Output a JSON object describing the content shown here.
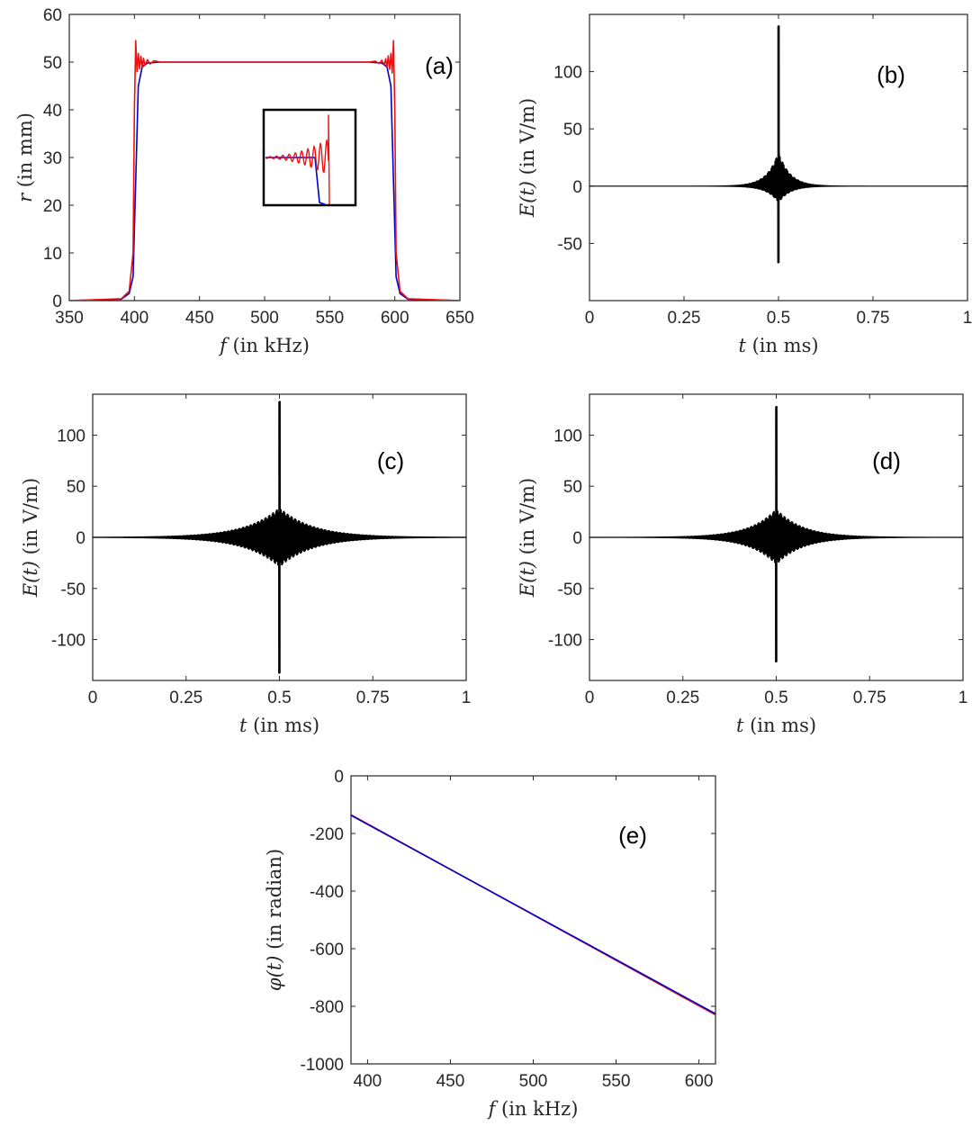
{
  "figure": {
    "panels": [
      {
        "id": "a",
        "label": "(a)"
      },
      {
        "id": "b",
        "label": "(b)"
      },
      {
        "id": "c",
        "label": "(c)"
      },
      {
        "id": "d",
        "label": "(d)"
      },
      {
        "id": "e",
        "label": "(e)"
      }
    ]
  },
  "chart_data": [
    {
      "id": "a",
      "type": "line",
      "title": "",
      "panel_label": "(a)",
      "xlabel_var": "f",
      "xlabel_unit": "(in kHz)",
      "ylabel_var": "r",
      "ylabel_unit": "(in mm)",
      "xlim": [
        350,
        650
      ],
      "ylim": [
        0,
        60
      ],
      "xticks": [
        350,
        400,
        450,
        500,
        550,
        600,
        650
      ],
      "yticks": [
        0,
        10,
        20,
        30,
        40,
        50,
        60
      ],
      "series": [
        {
          "color": "#0000cc",
          "x": [
            350,
            390,
            396,
            399,
            401,
            403,
            406,
            410,
            420,
            500,
            580,
            590,
            594,
            597,
            599,
            601,
            604,
            610,
            650
          ],
          "y": [
            0,
            0.3,
            1.5,
            5,
            25,
            45,
            49,
            49.8,
            50,
            50,
            50,
            49.8,
            49,
            45,
            25,
            5,
            1.5,
            0.3,
            0
          ]
        },
        {
          "color": "#ee1111",
          "x": [
            350,
            390,
            396,
            399,
            400,
            401,
            402,
            403,
            404,
            405,
            406,
            407,
            408,
            410,
            412,
            415,
            420,
            500,
            580,
            585,
            588,
            590,
            592,
            593,
            594,
            595,
            596,
            597,
            598,
            599,
            600,
            601,
            604,
            610,
            650
          ],
          "y": [
            0,
            0.4,
            2,
            10,
            40,
            54.5,
            48,
            51.8,
            48.6,
            51.2,
            49,
            50.8,
            49.3,
            50.5,
            49.6,
            50.3,
            50,
            50,
            50,
            50.2,
            49.7,
            50.4,
            49.4,
            50.7,
            48.9,
            51.3,
            48.5,
            51.8,
            47.7,
            54.5,
            40,
            10,
            2,
            0.4,
            0
          ]
        }
      ],
      "inset": {
        "note": "zoom of upper band edge"
      }
    },
    {
      "id": "b",
      "type": "line",
      "title": "",
      "panel_label": "(b)",
      "xlabel_var": "t",
      "xlabel_unit": "(in ms)",
      "ylabel_var": "E(t)",
      "ylabel_unit": "(in V/m)",
      "xlim": [
        0,
        1
      ],
      "ylim": [
        -100,
        150
      ],
      "xticks": [
        0,
        0.25,
        0.5,
        0.75,
        1
      ],
      "xticklabels": [
        "0",
        "0.25",
        "0.5",
        "0.75",
        "1"
      ],
      "yticks": [
        -50,
        0,
        50,
        100
      ],
      "pulse_center": 0.5,
      "peak_max": 140,
      "peak_min": -67,
      "envelope_width": 0.03
    },
    {
      "id": "c",
      "type": "line",
      "title": "",
      "panel_label": "(c)",
      "xlabel_var": "t",
      "xlabel_unit": "(in ms)",
      "ylabel_var": "E(t)",
      "ylabel_unit": "(in V/m)",
      "xlim": [
        0,
        1
      ],
      "ylim": [
        -140,
        140
      ],
      "xticks": [
        0,
        0.25,
        0.5,
        0.75,
        1
      ],
      "xticklabels": [
        "0",
        "0.25",
        "0.5",
        "0.75",
        "1"
      ],
      "yticks": [
        -100,
        -50,
        0,
        50,
        100
      ],
      "pulse_center": 0.5,
      "peak_max": 133,
      "peak_min": -133,
      "envelope_width": 0.09
    },
    {
      "id": "d",
      "type": "line",
      "title": "",
      "panel_label": "(d)",
      "xlabel_var": "t",
      "xlabel_unit": "(in ms)",
      "ylabel_var": "E(t)",
      "ylabel_unit": "(in V/m)",
      "xlim": [
        0,
        1
      ],
      "ylim": [
        -140,
        140
      ],
      "xticks": [
        0,
        0.25,
        0.5,
        0.75,
        1
      ],
      "xticklabels": [
        "0",
        "0.25",
        "0.5",
        "0.75",
        "1"
      ],
      "yticks": [
        -100,
        -50,
        0,
        50,
        100
      ],
      "pulse_center": 0.5,
      "peak_max": 128,
      "peak_min": -122,
      "envelope_width": 0.07
    },
    {
      "id": "e",
      "type": "line",
      "title": "",
      "panel_label": "(e)",
      "xlabel_var": "f",
      "xlabel_unit": "(in kHz)",
      "ylabel_var": "φ(t)",
      "ylabel_unit": "(in radian)",
      "xlim": [
        390,
        610
      ],
      "ylim": [
        -1000,
        0
      ],
      "xticks": [
        400,
        450,
        500,
        550,
        600
      ],
      "yticks": [
        -1000,
        -800,
        -600,
        -400,
        -200,
        0
      ],
      "series": [
        {
          "color": "#ee1111",
          "x": [
            390,
            610
          ],
          "y": [
            -135,
            -830
          ]
        },
        {
          "color": "#0000cc",
          "x": [
            390,
            610
          ],
          "y": [
            -137,
            -826
          ]
        }
      ]
    }
  ]
}
